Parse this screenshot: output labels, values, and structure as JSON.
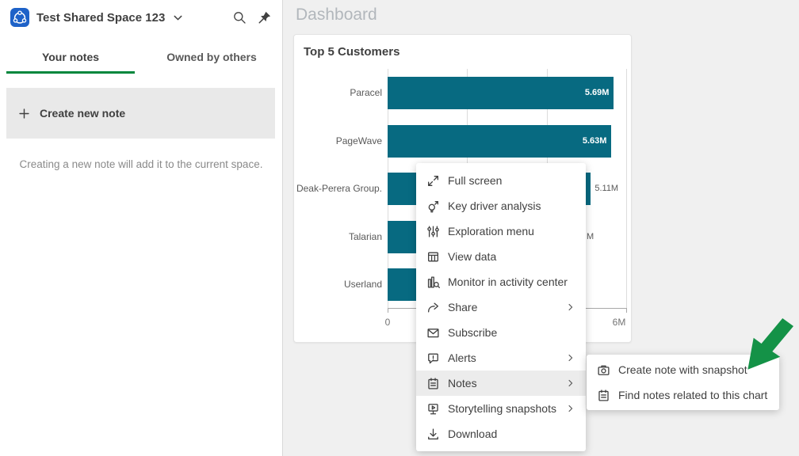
{
  "sidebar": {
    "space_name": "Test Shared Space 123",
    "tabs": [
      {
        "label": "Your notes",
        "active": true
      },
      {
        "label": "Owned by others",
        "active": false
      }
    ],
    "create_note_label": "Create new note",
    "helper_text": "Creating a new note will add it to the current space."
  },
  "main": {
    "page_title": "Dashboard"
  },
  "chart_data": {
    "type": "bar",
    "orientation": "horizontal",
    "title": "Top 5 Customers",
    "xlabel": "",
    "ylabel": "",
    "xlim": [
      0,
      6
    ],
    "x_tick_labels": [
      "0",
      "6M"
    ],
    "gridline_values": [
      0,
      2,
      4,
      6
    ],
    "bar_color": "#076a81",
    "bars": [
      {
        "category": "Paracel",
        "value": 5.69,
        "label": "5.69M",
        "label_style": "inside"
      },
      {
        "category": "PageWave",
        "value": 5.63,
        "label": "5.63M",
        "label_style": "inside"
      },
      {
        "category": "Deak-Perera Group.",
        "value": 5.11,
        "label": "5.11M",
        "label_style": "outside"
      },
      {
        "category": "Talarian",
        "value": 4.43,
        "label": "M",
        "label_style": "fragment"
      },
      {
        "category": "Userland",
        "value": 4.2,
        "label": "",
        "label_style": "hidden"
      }
    ]
  },
  "context_menu": {
    "items": [
      {
        "label": "Full screen",
        "icon": "fullscreen-icon",
        "submenu": false,
        "highlighted": false
      },
      {
        "label": "Key driver analysis",
        "icon": "key-driver-icon",
        "submenu": false,
        "highlighted": false
      },
      {
        "label": "Exploration menu",
        "icon": "sliders-icon",
        "submenu": false,
        "highlighted": false
      },
      {
        "label": "View data",
        "icon": "table-icon",
        "submenu": false,
        "highlighted": false
      },
      {
        "label": "Monitor in activity center",
        "icon": "monitor-chart-icon",
        "submenu": false,
        "highlighted": false
      },
      {
        "label": "Share",
        "icon": "share-icon",
        "submenu": true,
        "highlighted": false
      },
      {
        "label": "Subscribe",
        "icon": "envelope-icon",
        "submenu": false,
        "highlighted": false
      },
      {
        "label": "Alerts",
        "icon": "alert-bubble-icon",
        "submenu": true,
        "highlighted": false
      },
      {
        "label": "Notes",
        "icon": "notes-icon",
        "submenu": true,
        "highlighted": true
      },
      {
        "label": "Storytelling snapshots",
        "icon": "storytelling-icon",
        "submenu": true,
        "highlighted": false
      },
      {
        "label": "Download",
        "icon": "download-icon",
        "submenu": false,
        "highlighted": false
      }
    ]
  },
  "submenu": {
    "items": [
      {
        "label": "Create note with snapshot",
        "icon": "camera-icon"
      },
      {
        "label": "Find notes related to this chart",
        "icon": "notes-icon"
      }
    ]
  },
  "colors": {
    "accent_green": "#00873d",
    "arrow_green": "#149247",
    "bar_teal": "#076a81",
    "space_icon_blue": "#1e62c8"
  }
}
